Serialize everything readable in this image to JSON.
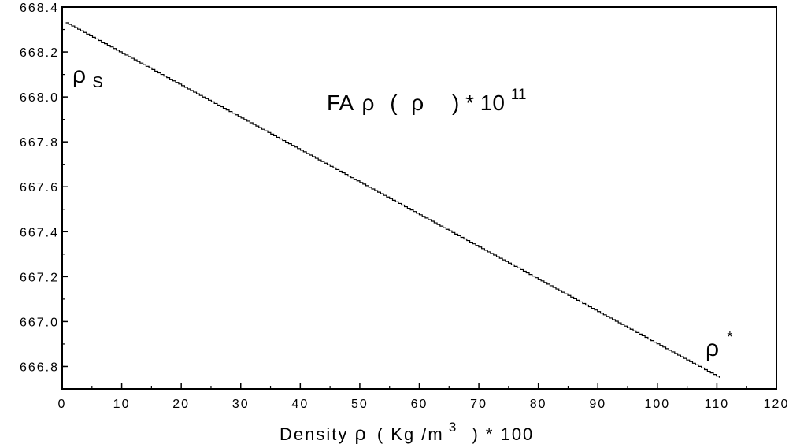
{
  "chart_data": {
    "type": "line",
    "title": {
      "prefix": "FA ",
      "rho1": "ρ",
      "open": "(",
      "rho2": "ρ",
      "close": ") * 10",
      "exponent": "11"
    },
    "xlabel": {
      "prefix": "Density ",
      "rho": "ρ",
      "unit": "( Kg /m",
      "exponent": "3",
      "suffix": ") * 100"
    },
    "ylabel": "",
    "xlim": [
      0,
      120
    ],
    "ylim": [
      666.7,
      668.4
    ],
    "xticks": [
      0,
      10,
      20,
      30,
      40,
      50,
      60,
      70,
      80,
      90,
      100,
      110,
      120
    ],
    "xtick_labels": [
      "0",
      "10",
      "20",
      "30",
      "40",
      "50",
      "60",
      "70",
      "80",
      "90",
      "100",
      "110",
      "120"
    ],
    "yticks": [
      666.8,
      667.0,
      667.2,
      667.4,
      667.6,
      667.8,
      668.0,
      668.2,
      668.4
    ],
    "ytick_labels": [
      "666.8",
      "667.0",
      "667.2",
      "667.4",
      "667.6",
      "667.8",
      "668.0",
      "668.2",
      "668.4"
    ],
    "grid": false,
    "series": [
      {
        "x": [
          0.6,
          110.4
        ],
        "y": [
          668.33,
          666.75
        ]
      }
    ],
    "annotations": [
      {
        "symbol": "ρ",
        "sub": "S",
        "sup": ""
      },
      {
        "symbol": "ρ",
        "sub": "",
        "sup": "*"
      }
    ],
    "colors": {
      "line": "#000000",
      "axes": "#000000",
      "background": "#ffffff"
    }
  }
}
